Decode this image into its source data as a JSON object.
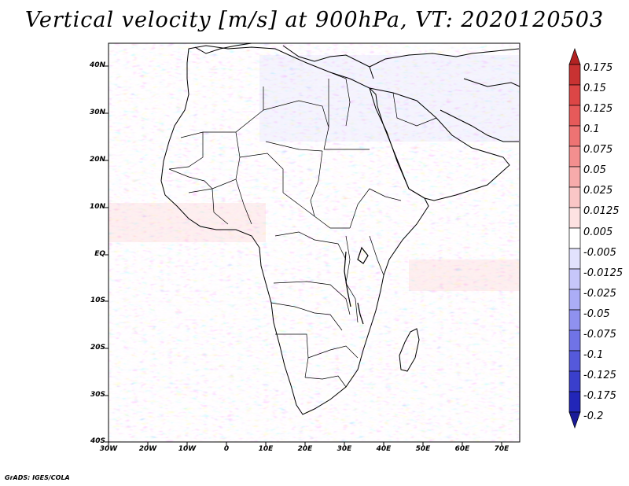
{
  "title": "Vertical velocity [m/s] at 900hPa, VT: 2020120503",
  "footer": "GrADS: IGES/COLA",
  "lat_labels": [
    "40N",
    "30N",
    "20N",
    "10N",
    "EQ",
    "10S",
    "20S",
    "30S",
    "40S"
  ],
  "lon_labels": [
    "30W",
    "20W",
    "10W",
    "0",
    "10E",
    "20E",
    "30E",
    "40E",
    "50E",
    "60E",
    "70E"
  ],
  "colorbar": {
    "labels": [
      "0.175",
      "0.15",
      "0.125",
      "0.1",
      "0.075",
      "0.05",
      "0.025",
      "0.0125",
      "0.005",
      "-0.005",
      "-0.0125",
      "-0.025",
      "-0.05",
      "-0.075",
      "-0.1",
      "-0.125",
      "-0.175",
      "-0.2"
    ],
    "colors": [
      "#b22222",
      "#c83232",
      "#dc4646",
      "#e65a5a",
      "#ee7373",
      "#f38f8f",
      "#f7abab",
      "#fac6c6",
      "#fde2e2",
      "#ffffff",
      "#e2e2fd",
      "#c6c6fa",
      "#abadf6",
      "#8f91ef",
      "#7073e6",
      "#5559db",
      "#3a3fcc",
      "#2226b8",
      "#1a1a99"
    ]
  }
}
